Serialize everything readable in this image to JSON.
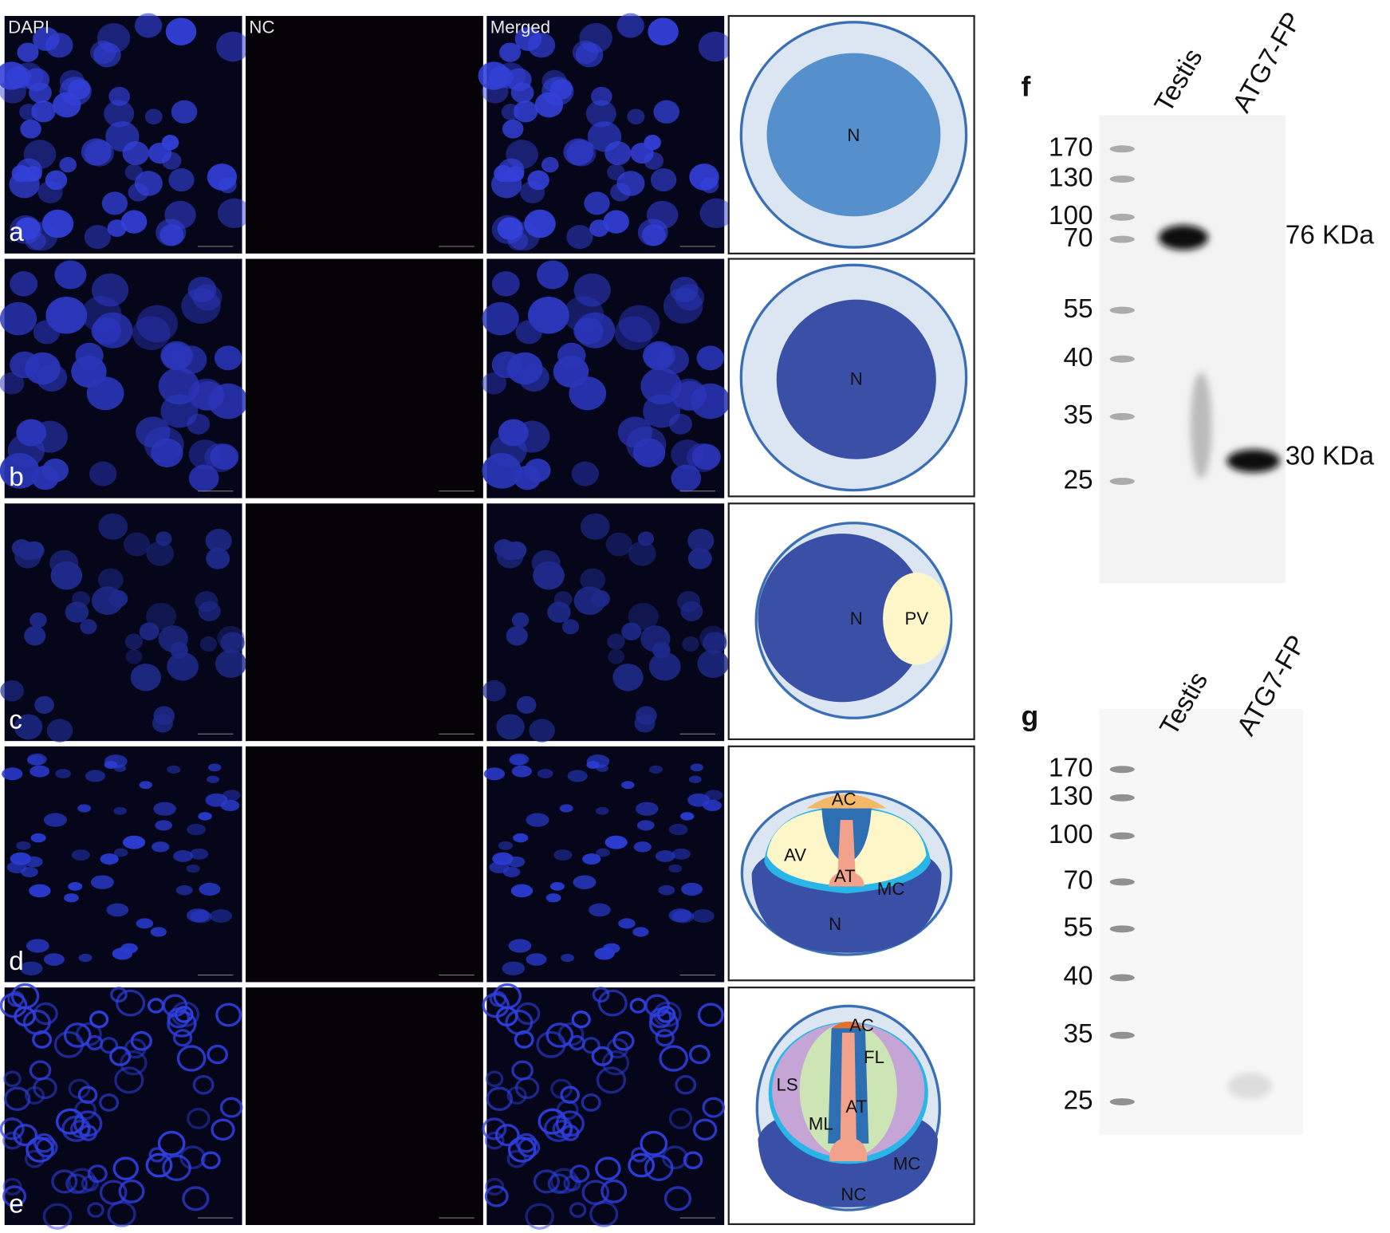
{
  "columns": [
    "DAPI",
    "NC",
    "Merged"
  ],
  "rows": [
    {
      "label": "a",
      "diagram": [
        "N"
      ]
    },
    {
      "label": "b",
      "diagram": [
        "N"
      ]
    },
    {
      "label": "c",
      "diagram": [
        "N",
        "PV"
      ]
    },
    {
      "label": "d",
      "diagram": [
        "AC",
        "AV",
        "AT",
        "MC",
        "N"
      ]
    },
    {
      "label": "e",
      "diagram": [
        "AC",
        "FL",
        "LS",
        "AT",
        "ML",
        "MC",
        "NC"
      ]
    }
  ],
  "blots": [
    {
      "label": "f",
      "lanes": [
        "Testis",
        "ATG7-FP"
      ],
      "markers": [
        "170",
        "130",
        "100",
        "70",
        "55",
        "40",
        "35",
        "25"
      ],
      "bands": [
        "76 KDa",
        "30 KDa"
      ]
    },
    {
      "label": "g",
      "lanes": [
        "Testis",
        "ATG7-FP"
      ],
      "markers": [
        "170",
        "130",
        "100",
        "70",
        "55",
        "40",
        "35",
        "25"
      ]
    }
  ]
}
